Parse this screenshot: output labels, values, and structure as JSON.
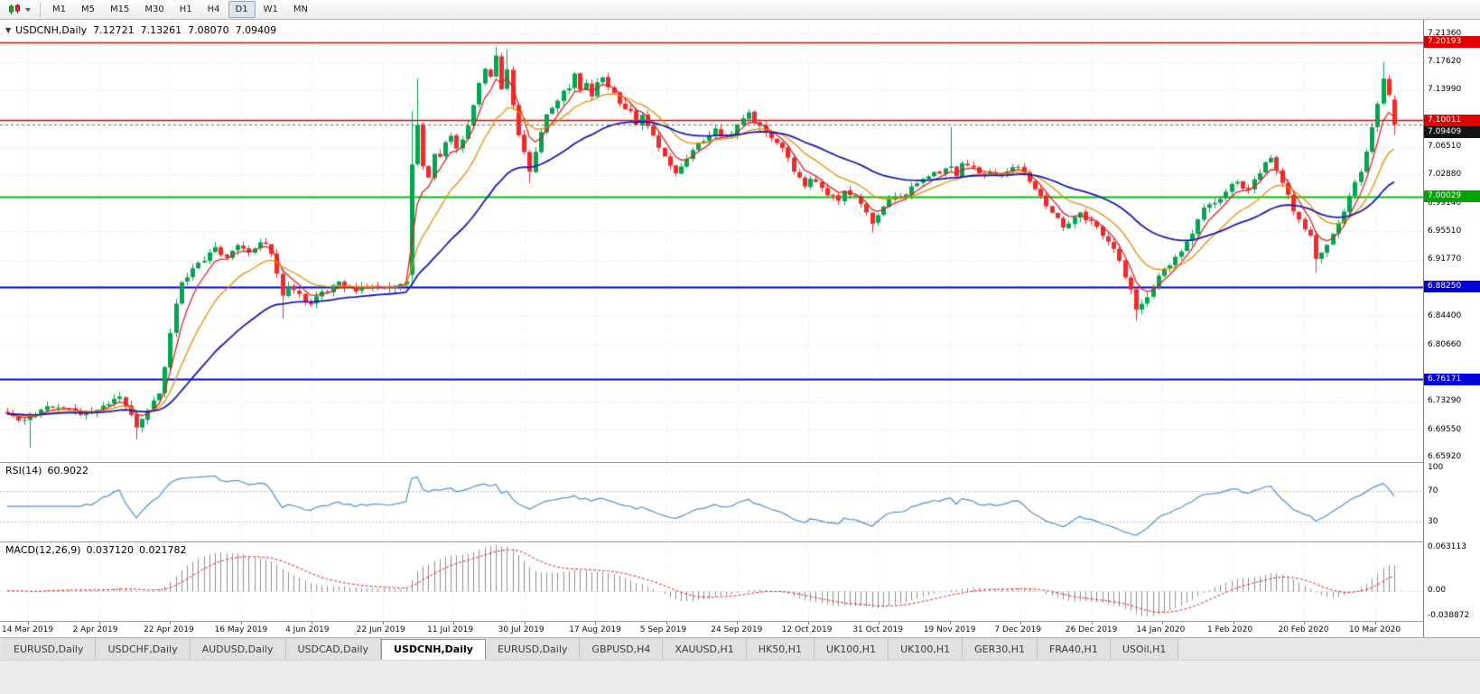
{
  "toolbar": {
    "timeframes": [
      "M1",
      "M5",
      "M15",
      "M30",
      "H1",
      "H4",
      "D1",
      "W1",
      "MN"
    ],
    "active_timeframe": "D1",
    "chart_type_tool": "candlestick-chart"
  },
  "chart": {
    "title": "USDCNH,Daily",
    "collapse_arrow": "▼",
    "ohlc": {
      "open": "7.12721",
      "high": "7.13261",
      "low": "7.08070",
      "close": "7.09409"
    }
  },
  "rsi": {
    "label": "RSI(14)",
    "value": "60.9022",
    "line_color": "#4a90d2",
    "levels": [
      70,
      30
    ],
    "axis_labels": [
      {
        "text": "100",
        "value": 100
      },
      {
        "text": "70",
        "value": 70
      },
      {
        "text": "30",
        "value": 30
      }
    ]
  },
  "macd": {
    "label": "MACD(12,26,9)",
    "value_main": "0.037120",
    "value_signal": "0.021782",
    "histogram_color": "#8f8f8f",
    "signal_color": "#e02020",
    "axis_labels": [
      {
        "text": "0.063113",
        "value": 0.063113
      },
      {
        "text": "0.00",
        "value": 0
      },
      {
        "text": "-0.038872",
        "value": -0.038872
      }
    ]
  },
  "price_axis": {
    "labels": [
      {
        "text": "7.21360",
        "value": 7.2136
      },
      {
        "text": "7.17620",
        "value": 7.1762
      },
      {
        "text": "7.13990",
        "value": 7.1399
      },
      {
        "text": "7.06510",
        "value": 7.0651
      },
      {
        "text": "7.02880",
        "value": 7.0288
      },
      {
        "text": "6.99140",
        "value": 6.9914
      },
      {
        "text": "6.95510",
        "value": 6.9551
      },
      {
        "text": "6.91770",
        "value": 6.9177
      },
      {
        "text": "6.84400",
        "value": 6.844
      },
      {
        "text": "6.80660",
        "value": 6.8066
      },
      {
        "text": "6.73290",
        "value": 6.7329
      },
      {
        "text": "6.69550",
        "value": 6.6955
      },
      {
        "text": "6.65920",
        "value": 6.6592
      }
    ],
    "badges": [
      {
        "text": "7.20193",
        "value": 7.20193,
        "bg": "#e00000"
      },
      {
        "text": "7.10011",
        "value": 7.10011,
        "bg": "#e00000"
      },
      {
        "text": "7.09409",
        "value": 7.09409,
        "bg": "#141414"
      },
      {
        "text": "7.00029",
        "value": 7.00029,
        "bg": "#00a400"
      },
      {
        "text": "6.88250",
        "value": 6.8825,
        "bg": "#0000d8"
      },
      {
        "text": "6.76171",
        "value": 6.76171,
        "bg": "#0000d8"
      }
    ]
  },
  "dates": [
    "14 Mar 2019",
    "2 Apr 2019",
    "22 Apr 2019",
    "16 May 2019",
    "4 Jun 2019",
    "22 Jun 2019",
    "11 Jul 2019",
    "30 Jul 2019",
    "17 Aug 2019",
    "5 Sep 2019",
    "24 Sep 2019",
    "12 Oct 2019",
    "31 Oct 2019",
    "19 Nov 2019",
    "7 Dec 2019",
    "26 Dec 2019",
    "14 Jan 2020",
    "1 Feb 2020",
    "20 Feb 2020",
    "10 Mar 2020"
  ],
  "tabs": {
    "items": [
      "EURUSD,Daily",
      "USDCHF,Daily",
      "AUDUSD,Daily",
      "USDCAD,Daily",
      "USDCNH,Daily",
      "EURUSD,Daily",
      "GBPUSD,H4",
      "XAUUSD,H1",
      "HK50,H1",
      "UK100,H1",
      "UK100,H1",
      "GER30,H1",
      "FRA40,H1",
      "USOil,H1"
    ],
    "active_index": 4
  },
  "chart_data": {
    "type": "candlestick",
    "symbol": "USDCNH",
    "timeframe": "Daily",
    "last_candle": {
      "open": 7.12721,
      "high": 7.13261,
      "low": 7.0807,
      "close": 7.09409
    },
    "price_range_top": 7.2313,
    "price_range_bottom": 6.6533,
    "candle_count": 248,
    "up_color": "#00a651",
    "down_color": "#ee2b2b",
    "grid_prices": [
      7.2136,
      7.1762,
      7.1399,
      7.1025,
      7.0651,
      7.0288,
      6.9914,
      6.9551,
      6.9177,
      6.8803,
      6.844,
      6.8066,
      6.7692,
      6.7329,
      6.6955,
      6.6592
    ],
    "horizontal_lines": [
      {
        "value": 7.20193,
        "color": "#e00000",
        "width": 1.4
      },
      {
        "value": 7.10011,
        "color": "#e00000",
        "width": 1.4
      },
      {
        "value": 7.00029,
        "color": "#00c400",
        "width": 2
      },
      {
        "value": 6.8825,
        "color": "#0000e0",
        "width": 2
      },
      {
        "value": 6.76171,
        "color": "#0000e0",
        "width": 2
      }
    ],
    "current_price_line": {
      "value": 7.09409,
      "color": "#666666"
    },
    "moving_averages": [
      {
        "period": 5,
        "type": "ema",
        "color": "#e02020",
        "width": 1.3
      },
      {
        "period": 13,
        "type": "ema",
        "color": "#e09000",
        "width": 1.3
      },
      {
        "period": 34,
        "type": "ema",
        "color": "#1818b8",
        "width": 1.8
      }
    ],
    "rsi_period": 14,
    "macd_params": [
      12,
      26,
      9
    ],
    "close_anchors": [
      [
        0,
        6.718
      ],
      [
        3,
        6.708
      ],
      [
        6,
        6.722
      ],
      [
        9,
        6.728
      ],
      [
        13,
        6.716
      ],
      [
        17,
        6.724
      ],
      [
        20,
        6.742
      ],
      [
        23,
        6.698
      ],
      [
        25,
        6.722
      ],
      [
        27,
        6.74
      ],
      [
        28,
        6.778
      ],
      [
        29,
        6.825
      ],
      [
        30,
        6.862
      ],
      [
        31,
        6.888
      ],
      [
        33,
        6.908
      ],
      [
        35,
        6.916
      ],
      [
        37,
        6.932
      ],
      [
        39,
        6.921
      ],
      [
        41,
        6.938
      ],
      [
        43,
        6.928
      ],
      [
        45,
        6.942
      ],
      [
        47,
        6.928
      ],
      [
        48,
        6.902
      ],
      [
        49,
        6.872
      ],
      [
        50,
        6.886
      ],
      [
        52,
        6.872
      ],
      [
        54,
        6.858
      ],
      [
        56,
        6.876
      ],
      [
        59,
        6.886
      ],
      [
        62,
        6.879
      ],
      [
        66,
        6.882
      ],
      [
        69,
        6.885
      ],
      [
        71,
        6.892
      ],
      [
        72,
        7.04
      ],
      [
        73,
        7.092
      ],
      [
        74,
        7.042
      ],
      [
        75,
        7.022
      ],
      [
        76,
        7.058
      ],
      [
        77,
        7.052
      ],
      [
        78,
        7.068
      ],
      [
        79,
        7.082
      ],
      [
        80,
        7.06
      ],
      [
        81,
        7.078
      ],
      [
        82,
        7.094
      ],
      [
        83,
        7.118
      ],
      [
        84,
        7.148
      ],
      [
        85,
        7.168
      ],
      [
        86,
        7.158
      ],
      [
        87,
        7.186
      ],
      [
        88,
        7.142
      ],
      [
        89,
        7.168
      ],
      [
        90,
        7.122
      ],
      [
        91,
        7.082
      ],
      [
        92,
        7.058
      ],
      [
        93,
        7.032
      ],
      [
        94,
        7.062
      ],
      [
        95,
        7.088
      ],
      [
        96,
        7.108
      ],
      [
        98,
        7.128
      ],
      [
        100,
        7.144
      ],
      [
        101,
        7.158
      ],
      [
        102,
        7.138
      ],
      [
        103,
        7.15
      ],
      [
        104,
        7.132
      ],
      [
        105,
        7.148
      ],
      [
        106,
        7.158
      ],
      [
        107,
        7.144
      ],
      [
        109,
        7.122
      ],
      [
        111,
        7.11
      ],
      [
        112,
        7.096
      ],
      [
        113,
        7.104
      ],
      [
        115,
        7.082
      ],
      [
        116,
        7.062
      ],
      [
        118,
        7.042
      ],
      [
        119,
        7.03
      ],
      [
        121,
        7.052
      ],
      [
        123,
        7.068
      ],
      [
        125,
        7.082
      ],
      [
        126,
        7.09
      ],
      [
        128,
        7.076
      ],
      [
        130,
        7.094
      ],
      [
        132,
        7.108
      ],
      [
        134,
        7.09
      ],
      [
        136,
        7.076
      ],
      [
        138,
        7.062
      ],
      [
        140,
        7.036
      ],
      [
        142,
        7.012
      ],
      [
        143,
        7.026
      ],
      [
        145,
        7.014
      ],
      [
        146,
        7.002
      ],
      [
        148,
        6.996
      ],
      [
        149,
        7.006
      ],
      [
        151,
        7.0
      ],
      [
        152,
        6.99
      ],
      [
        154,
        6.966
      ],
      [
        155,
        6.976
      ],
      [
        156,
        6.99
      ],
      [
        158,
        7.0
      ],
      [
        160,
        7.006
      ],
      [
        162,
        7.018
      ],
      [
        164,
        7.026
      ],
      [
        166,
        7.032
      ],
      [
        168,
        7.04
      ],
      [
        169,
        7.03
      ],
      [
        170,
        7.046
      ],
      [
        172,
        7.036
      ],
      [
        174,
        7.03
      ],
      [
        176,
        7.028
      ],
      [
        178,
        7.036
      ],
      [
        180,
        7.04
      ],
      [
        181,
        7.03
      ],
      [
        182,
        7.02
      ],
      [
        183,
        7.01
      ],
      [
        184,
        7.0
      ],
      [
        186,
        6.98
      ],
      [
        187,
        6.974
      ],
      [
        188,
        6.96
      ],
      [
        189,
        6.966
      ],
      [
        191,
        6.976
      ],
      [
        193,
        6.968
      ],
      [
        195,
        6.952
      ],
      [
        196,
        6.94
      ],
      [
        197,
        6.93
      ],
      [
        198,
        6.918
      ],
      [
        199,
        6.898
      ],
      [
        200,
        6.878
      ],
      [
        201,
        6.856
      ],
      [
        202,
        6.862
      ],
      [
        203,
        6.872
      ],
      [
        204,
        6.882
      ],
      [
        205,
        6.895
      ],
      [
        206,
        6.905
      ],
      [
        208,
        6.92
      ],
      [
        209,
        6.93
      ],
      [
        210,
        6.944
      ],
      [
        211,
        6.954
      ],
      [
        212,
        6.968
      ],
      [
        213,
        6.984
      ],
      [
        214,
        6.99
      ],
      [
        216,
        7.0
      ],
      [
        217,
        7.01
      ],
      [
        219,
        7.02
      ],
      [
        220,
        7.014
      ],
      [
        221,
        7.006
      ],
      [
        222,
        7.02
      ],
      [
        223,
        7.028
      ],
      [
        224,
        7.042
      ],
      [
        225,
        7.048
      ],
      [
        226,
        7.032
      ],
      [
        227,
        7.02
      ],
      [
        228,
        7.002
      ],
      [
        229,
        6.984
      ],
      [
        230,
        6.972
      ],
      [
        231,
        6.96
      ],
      [
        232,
        6.946
      ],
      [
        233,
        6.922
      ],
      [
        234,
        6.93
      ],
      [
        235,
        6.938
      ],
      [
        236,
        6.952
      ],
      [
        237,
        6.968
      ],
      [
        238,
        6.984
      ],
      [
        239,
        7.0
      ],
      [
        240,
        7.016
      ],
      [
        241,
        7.034
      ],
      [
        242,
        7.06
      ],
      [
        243,
        7.092
      ],
      [
        244,
        7.122
      ],
      [
        245,
        7.158
      ],
      [
        246,
        7.13
      ],
      [
        247,
        7.094
      ]
    ],
    "wick_overrides": {
      "4": {
        "l": 6.672
      },
      "23": {
        "l": 6.683
      },
      "49": {
        "l": 6.841
      },
      "72": {
        "o": 6.898,
        "h": 7.112
      },
      "73": {
        "h": 7.155
      },
      "87": {
        "h": 7.196
      },
      "89": {
        "h": 7.193
      },
      "93": {
        "l": 7.018
      },
      "154": {
        "l": 6.953
      },
      "168": {
        "h": 7.091
      },
      "201": {
        "l": 6.838
      },
      "233": {
        "l": 6.901
      },
      "245": {
        "h": 7.176
      },
      "247": {
        "o": 7.12721,
        "h": 7.13261,
        "l": 7.0807,
        "c": 7.09409
      }
    }
  }
}
